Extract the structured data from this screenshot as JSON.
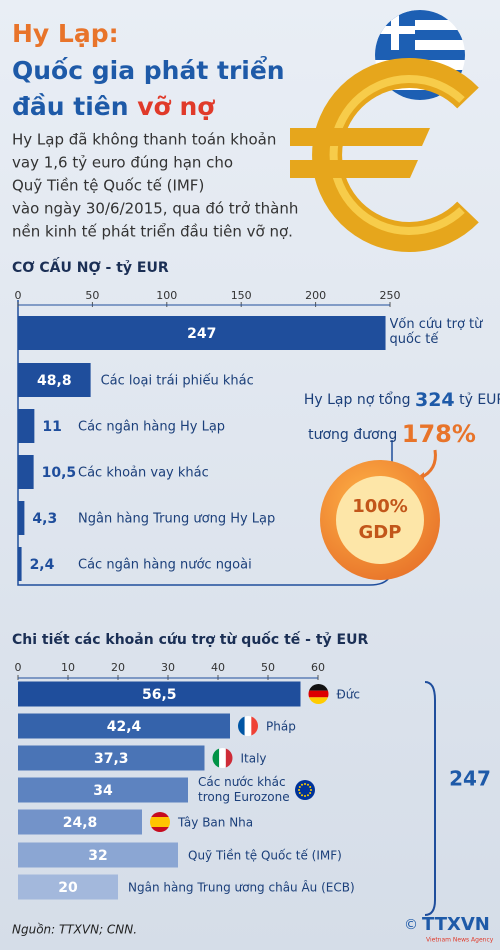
{
  "header": {
    "title_line1": "Hy Lạp:",
    "title_line2": "Quốc gia phát triển",
    "title_line3a": "đầu tiên",
    "title_line3b": "vỡ nợ"
  },
  "intro": [
    "Hy Lạp đã không thanh toán khoản",
    "vay 1,6 tỷ euro đúng hạn cho",
    "Quỹ Tiền tệ Quốc tế (IMF)",
    "vào ngày 30/6/2015, qua đó trở thành",
    "nền kinh tế phát triển đầu tiên vỡ nợ."
  ],
  "callout": {
    "prefix1": "Hy Lạp nợ tổng",
    "debt": "324",
    "suffix1": "tỷ EUR",
    "prefix2": "tương đương",
    "ratio": "178%",
    "circle_value": "100%",
    "circle_label": "GDP"
  },
  "chart_data": [
    {
      "type": "bar",
      "orientation": "horizontal",
      "title": "CƠ CẤU NỢ - tỷ EUR",
      "categories": [
        "Vốn cứu trợ từ quốc tế",
        "Các loại trái phiếu khác",
        "Các ngân hàng Hy Lạp",
        "Các khoản vay khác",
        "Ngân hàng Trung ương Hy Lạp",
        "Các ngân hàng nước ngoài"
      ],
      "values": [
        247,
        48.8,
        11,
        10.5,
        4.3,
        2.4
      ],
      "value_labels": [
        "247",
        "48,8",
        "11",
        "10,5",
        "4,3",
        "2,4"
      ],
      "color": "#1f4e9c",
      "xlim": [
        0,
        250
      ],
      "xticks": [
        0,
        50,
        100,
        150,
        200,
        250
      ]
    },
    {
      "type": "bar",
      "orientation": "horizontal",
      "title": "Chi tiết các khoản cứu trợ từ quốc tế - tỷ EUR",
      "categories": [
        "Đức",
        "Pháp",
        "Italy",
        "Các nước khác trong Eurozone",
        "Tây Ban Nha",
        "Quỹ Tiền tệ Quốc tế (IMF)",
        "Ngân hàng Trung ương châu Âu (ECB)"
      ],
      "values": [
        56.5,
        42.4,
        37.3,
        34,
        24.8,
        32,
        20
      ],
      "value_labels": [
        "56,5",
        "42,4",
        "37,3",
        "34",
        "24,8",
        "32",
        "20"
      ],
      "colors": [
        "#1f4e9c",
        "#3563ab",
        "#4a74b6",
        "#5d83c0",
        "#7393c9",
        "#8ba6d3",
        "#a3b8dc"
      ],
      "xlim": [
        0,
        60
      ],
      "xticks": [
        0,
        10,
        20,
        30,
        40,
        50,
        60
      ],
      "total": 247
    }
  ],
  "footer": {
    "source": "Nguồn: TTXVN; CNN.",
    "copyright": "©",
    "logo": "TTXVN",
    "logo_sub": "Vietnam News Agency"
  }
}
